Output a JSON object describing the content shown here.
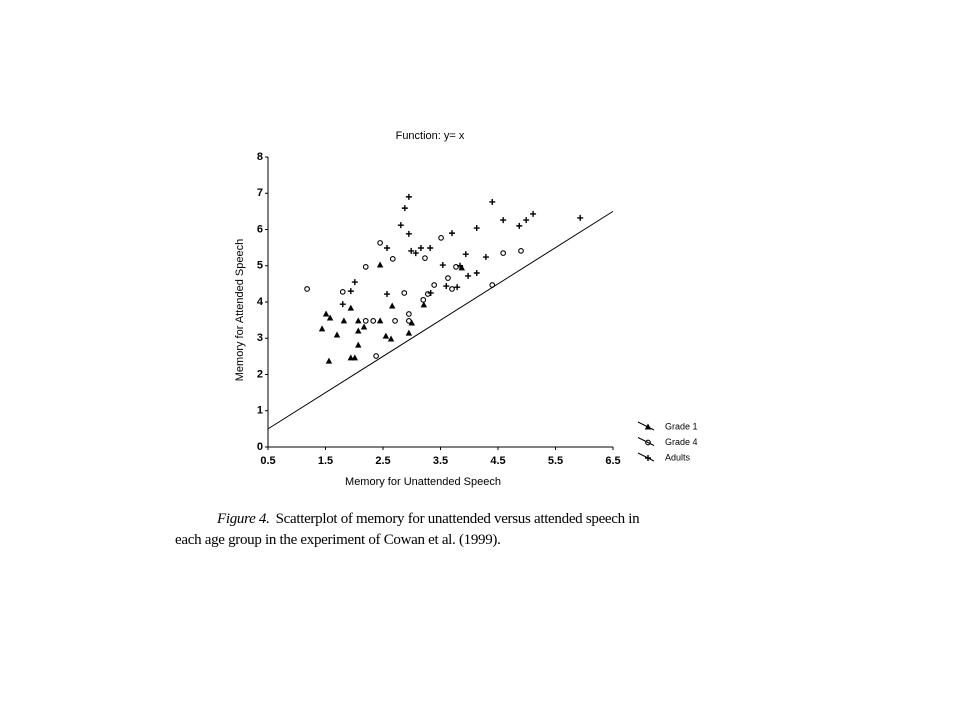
{
  "chart_data": {
    "type": "scatter",
    "title": "Function: y= x",
    "x_label": "Memory for Unattended Speech",
    "y_label": "Memory for Attended Speech",
    "xlim": [
      0.5,
      6.5
    ],
    "ylim": [
      0,
      8
    ],
    "xticks": [
      0.5,
      1.5,
      2.5,
      3.5,
      4.5,
      5.5,
      6.5
    ],
    "yticks": [
      0,
      1,
      2,
      3,
      4,
      5,
      6,
      7,
      8
    ],
    "grid": false,
    "reference_line": "y=x",
    "legend": "bottom-right-outside",
    "series": [
      {
        "name": "Grade 1",
        "color": "#000000",
        "marker": "triangle",
        "x": [
          1.44,
          1.51,
          1.58,
          1.56,
          1.7,
          1.82,
          1.94,
          1.94,
          2.01,
          2.07,
          2.07,
          2.07,
          2.17,
          2.45,
          2.45,
          2.55,
          2.64,
          2.66,
          2.95,
          3.0,
          3.21,
          3.87
        ],
        "values": [
          3.26,
          3.67,
          3.56,
          2.37,
          3.09,
          3.48,
          3.83,
          2.46,
          2.46,
          2.81,
          3.48,
          3.2,
          3.31,
          5.02,
          3.48,
          3.06,
          2.98,
          3.89,
          3.14,
          3.42,
          3.92,
          4.94
        ]
      },
      {
        "name": "Grade 4",
        "color": "#000000",
        "marker": "circle",
        "x": [
          1.18,
          1.8,
          2.2,
          2.2,
          2.33,
          2.38,
          2.45,
          2.67,
          2.71,
          2.87,
          2.95,
          2.95,
          3.2,
          3.23,
          3.28,
          3.39,
          3.51,
          3.63,
          3.7,
          3.77,
          4.4,
          4.59,
          4.9
        ],
        "values": [
          4.36,
          4.28,
          4.97,
          3.48,
          3.48,
          2.51,
          5.63,
          5.19,
          3.48,
          4.25,
          3.67,
          3.48,
          4.06,
          5.21,
          4.22,
          4.47,
          5.77,
          4.66,
          4.36,
          4.97,
          4.47,
          5.35,
          5.41
        ]
      },
      {
        "name": "Adults",
        "color": "#000000",
        "marker": "plus",
        "x": [
          1.8,
          1.94,
          2.01,
          2.57,
          2.57,
          2.81,
          2.88,
          2.95,
          2.95,
          2.99,
          3.07,
          3.16,
          3.32,
          3.33,
          3.54,
          3.6,
          3.7,
          3.79,
          3.84,
          3.94,
          3.98,
          4.13,
          4.13,
          4.29,
          4.4,
          4.59,
          4.87,
          4.99,
          5.11,
          5.93
        ],
        "values": [
          3.94,
          4.3,
          4.55,
          5.49,
          4.22,
          6.12,
          6.59,
          6.9,
          5.88,
          5.41,
          5.35,
          5.49,
          5.49,
          4.25,
          5.02,
          4.44,
          5.9,
          4.41,
          5.0,
          5.32,
          4.72,
          6.04,
          4.8,
          5.24,
          6.76,
          6.26,
          6.1,
          6.26,
          6.43,
          6.32
        ]
      }
    ]
  },
  "caption": {
    "label": "Figure 4.",
    "lines": [
      "Scatterplot of memory for unattended versus attended speech in",
      "each age group in the experiment of Cowan et al. (1999)."
    ]
  }
}
